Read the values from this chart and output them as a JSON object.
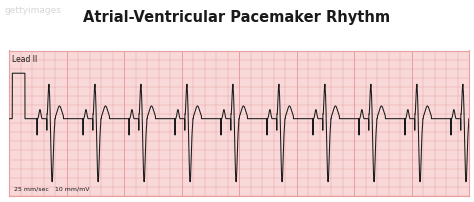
{
  "title": "Atrial-Ventricular Pacemaker Rhythm",
  "lead_label": "Lead II",
  "bottom_label_left": "25 mm/sec",
  "bottom_label_right": "10 mm/mV",
  "bg_color": "#ffffff",
  "grid_major_color": "#e8a0a0",
  "grid_minor_color": "#f8d8d8",
  "ecg_color": "#1a1a1a",
  "title_color": "#1a1a1a",
  "watermark": "gettyimages",
  "figsize": [
    4.74,
    2.02
  ],
  "dpi": 100,
  "hr": 75,
  "num_beats": 10
}
